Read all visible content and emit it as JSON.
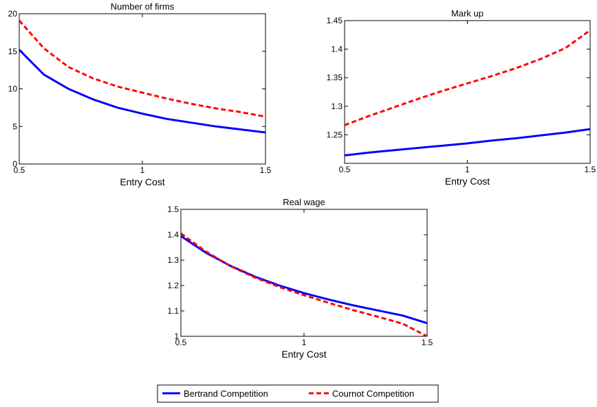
{
  "colors": {
    "bertrand": "#0000ff",
    "cournot": "#ff0000",
    "axes": "#000000",
    "background": "#ffffff"
  },
  "legend": {
    "location": "bottom-center",
    "entries": [
      {
        "label": "Bertrand Competition",
        "color": "#0000ff",
        "style": "solid"
      },
      {
        "label": "Cournot Competition",
        "color": "#ff0000",
        "style": "dashed"
      }
    ]
  },
  "chart_data": [
    {
      "type": "line",
      "title": "Number of firms",
      "xlabel": "Entry Cost",
      "ylabel": "",
      "xlim": [
        0.5,
        1.5
      ],
      "ylim": [
        0,
        20
      ],
      "xticks": [
        "0.5",
        "1",
        "1.5"
      ],
      "yticks": [
        "0",
        "5",
        "10",
        "15",
        "20"
      ],
      "x": [
        0.5,
        0.6,
        0.7,
        0.8,
        0.9,
        1.0,
        1.1,
        1.2,
        1.3,
        1.4,
        1.5
      ],
      "series": [
        {
          "name": "Bertrand Competition",
          "color": "#0000ff",
          "style": "solid",
          "values": [
            15.2,
            11.9,
            10.0,
            8.6,
            7.5,
            6.7,
            6.0,
            5.5,
            5.0,
            4.6,
            4.2
          ]
        },
        {
          "name": "Cournot Competition",
          "color": "#ff0000",
          "style": "dashed",
          "values": [
            19.1,
            15.4,
            12.9,
            11.4,
            10.3,
            9.5,
            8.7,
            8.0,
            7.4,
            6.9,
            6.3
          ]
        }
      ]
    },
    {
      "type": "line",
      "title": "Mark up",
      "xlabel": "Entry Cost",
      "ylabel": "",
      "xlim": [
        0.5,
        1.5
      ],
      "ylim": [
        1.2,
        1.45
      ],
      "xticks": [
        "0.5",
        "1",
        "1.5"
      ],
      "yticks": [
        "1.25",
        "1.3",
        "1.35",
        "1.4",
        "1.45"
      ],
      "x": [
        0.5,
        0.6,
        0.7,
        0.8,
        0.9,
        1.0,
        1.1,
        1.2,
        1.3,
        1.4,
        1.5
      ],
      "series": [
        {
          "name": "Bertrand Competition",
          "color": "#0000ff",
          "style": "solid",
          "values": [
            1.214,
            1.219,
            1.223,
            1.227,
            1.231,
            1.235,
            1.24,
            1.244,
            1.249,
            1.254,
            1.26
          ]
        },
        {
          "name": "Cournot Competition",
          "color": "#ff0000",
          "style": "dashed",
          "values": [
            1.267,
            1.283,
            1.298,
            1.313,
            1.327,
            1.34,
            1.353,
            1.367,
            1.383,
            1.402,
            1.433
          ]
        }
      ]
    },
    {
      "type": "line",
      "title": "Real wage",
      "xlabel": "Entry Cost",
      "ylabel": "",
      "xlim": [
        0.5,
        1.5
      ],
      "ylim": [
        1.0,
        1.5
      ],
      "xticks": [
        "0.5",
        "1",
        "1.5"
      ],
      "yticks": [
        "1",
        "1.1",
        "1.2",
        "1.3",
        "1.4",
        "1.5"
      ],
      "x": [
        0.5,
        0.6,
        0.7,
        0.8,
        0.9,
        1.0,
        1.1,
        1.2,
        1.3,
        1.4,
        1.5
      ],
      "series": [
        {
          "name": "Bertrand Competition",
          "color": "#0000ff",
          "style": "solid",
          "values": [
            1.395,
            1.33,
            1.278,
            1.235,
            1.2,
            1.17,
            1.145,
            1.122,
            1.102,
            1.082,
            1.052
          ]
        },
        {
          "name": "Cournot Competition",
          "color": "#ff0000",
          "style": "dashed",
          "values": [
            1.405,
            1.335,
            1.277,
            1.232,
            1.194,
            1.162,
            1.132,
            1.103,
            1.077,
            1.05,
            1.0
          ]
        }
      ]
    }
  ]
}
